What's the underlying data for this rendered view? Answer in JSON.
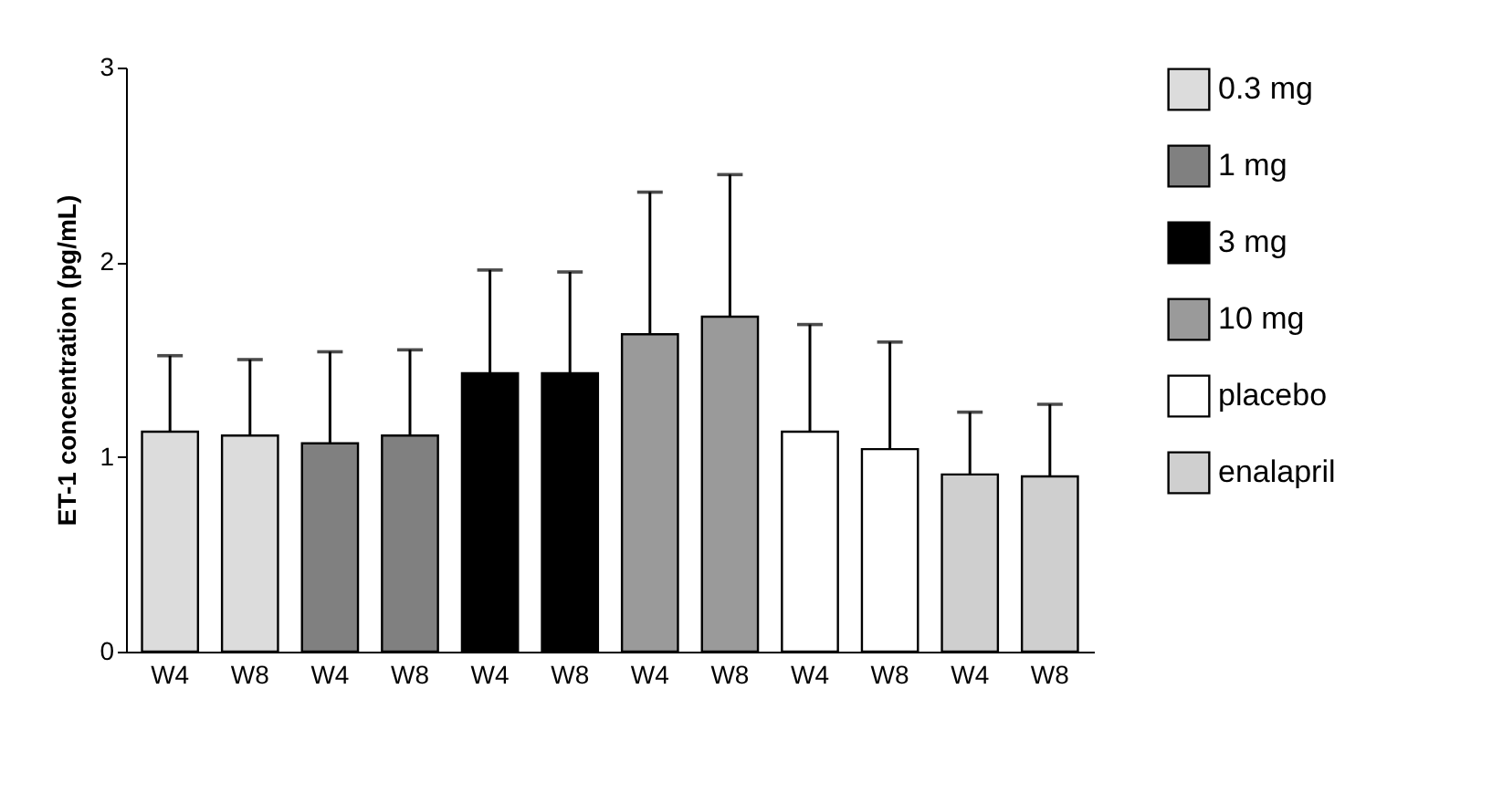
{
  "chart_data": {
    "type": "bar",
    "ylabel": "ET-1 concentration (pg/mL)",
    "categories": [
      "W4",
      "W8",
      "W4",
      "W8",
      "W4",
      "W8",
      "W4",
      "W8",
      "W4",
      "W8",
      "W4",
      "W8"
    ],
    "series": [
      {
        "name": "0.3 mg",
        "color": "#dcdcdc",
        "values": [
          1.13,
          1.11,
          null,
          null,
          null,
          null,
          null,
          null,
          null,
          null,
          null,
          null
        ],
        "errors": [
          [
            1.13,
            1.52
          ],
          [
            1.11,
            1.5
          ],
          null,
          null,
          null,
          null,
          null,
          null,
          null,
          null,
          null,
          null
        ]
      },
      {
        "name": "1 mg",
        "color": "#808080",
        "values": [
          null,
          null,
          1.07,
          1.11,
          null,
          null,
          null,
          null,
          null,
          null,
          null,
          null
        ],
        "errors": [
          null,
          null,
          [
            1.07,
            1.54
          ],
          [
            1.11,
            1.55
          ],
          null,
          null,
          null,
          null,
          null,
          null,
          null,
          null
        ]
      },
      {
        "name": "3 mg",
        "color": "#000000",
        "values": [
          null,
          null,
          null,
          null,
          1.43,
          1.43,
          null,
          null,
          null,
          null,
          null,
          null
        ],
        "errors": [
          null,
          null,
          null,
          null,
          [
            1.43,
            1.96
          ],
          [
            1.43,
            1.95
          ],
          null,
          null,
          null,
          null,
          null,
          null
        ]
      },
      {
        "name": "10 mg",
        "color": "#9a9a9a",
        "values": [
          null,
          null,
          null,
          null,
          null,
          null,
          1.63,
          1.72,
          null,
          null,
          null,
          null
        ],
        "errors": [
          null,
          null,
          null,
          null,
          null,
          null,
          [
            1.63,
            2.36
          ],
          [
            1.72,
            2.45
          ],
          null,
          null,
          null,
          null
        ]
      },
      {
        "name": "placebo",
        "color": "#ffffff",
        "values": [
          null,
          null,
          null,
          null,
          null,
          null,
          null,
          null,
          1.13,
          1.04,
          null,
          null
        ],
        "errors": [
          null,
          null,
          null,
          null,
          null,
          null,
          null,
          null,
          [
            1.13,
            1.68
          ],
          [
            1.04,
            1.59
          ],
          null,
          null
        ]
      },
      {
        "name": "enalapril",
        "color": "#cfcfcf",
        "values": [
          null,
          null,
          null,
          null,
          null,
          null,
          null,
          null,
          null,
          null,
          0.91,
          0.9
        ],
        "errors": [
          null,
          null,
          null,
          null,
          null,
          null,
          null,
          null,
          null,
          null,
          [
            0.91,
            1.23
          ],
          [
            0.9,
            1.27
          ]
        ]
      }
    ],
    "ylim": [
      0,
      3
    ],
    "yticks": [
      0,
      1,
      2,
      3
    ],
    "grid": false,
    "legend": "right"
  }
}
